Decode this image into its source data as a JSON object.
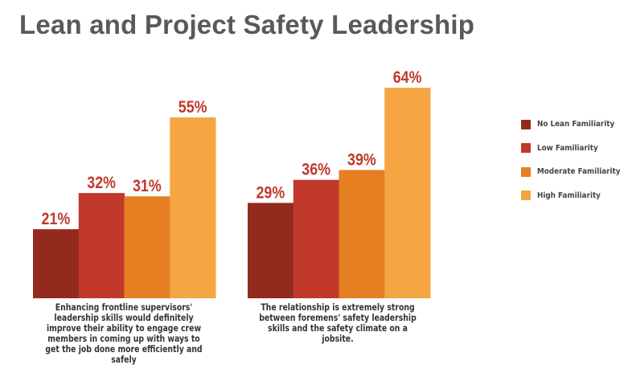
{
  "title": "Lean and Project Safety Leadership",
  "chart_data": {
    "type": "bar",
    "title": "Lean and Project Safety Leadership",
    "xlabel": "",
    "ylabel": "",
    "ylim": [
      0,
      70
    ],
    "grid": false,
    "legend_position": "right",
    "categories": [
      "Enhancing frontline supervisors' leadership skills would definitely improve their ability to engage crew members in coming up with ways to get the job done more efficiently and safely",
      "The relationship is extremely strong between foremens' safety leadership skills and the safety climate on a jobsite."
    ],
    "series": [
      {
        "name": "No Lean Familiarity",
        "color": "#922b1e",
        "values": [
          21,
          29
        ]
      },
      {
        "name": "Low Familiarity",
        "color": "#c0392b",
        "values": [
          32,
          36
        ]
      },
      {
        "name": "Moderate Familiarity",
        "color": "#e67e22",
        "values": [
          31,
          39
        ]
      },
      {
        "name": "High Familiarity",
        "color": "#f5a542",
        "values": [
          55,
          64
        ]
      }
    ],
    "value_suffix": "%",
    "label_color": "#c0392b"
  },
  "captions": [
    "Enhancing frontline supervisors' leadership skills would definitely improve their ability to engage crew members in coming up with ways to get the job done more efficiently and safely",
    "The relationship is extremely strong between foremens' safety leadership skills and the safety climate on a jobsite."
  ],
  "legend": [
    {
      "label": "No Lean Familiarity",
      "color": "#922b1e"
    },
    {
      "label": "Low Familiarity",
      "color": "#c0392b"
    },
    {
      "label": "Moderate Familiarity",
      "color": "#e67e22"
    },
    {
      "label": "High Familiarity",
      "color": "#f5a542"
    }
  ]
}
